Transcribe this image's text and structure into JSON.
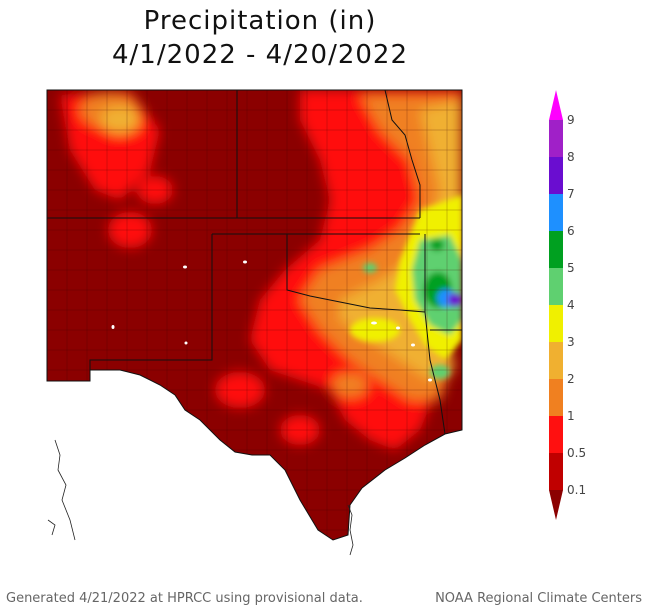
{
  "title": {
    "line1": "Precipitation (in)",
    "line2": "4/1/2022 - 4/20/2022"
  },
  "legend": {
    "ticks": [
      "9",
      "8",
      "7",
      "6",
      "5",
      "4",
      "3",
      "2",
      "1",
      "0.5",
      "0.1"
    ],
    "colors": [
      "#ff00ff",
      "#a020c8",
      "#6a0dd0",
      "#1e90ff",
      "#00a020",
      "#5fd070",
      "#f0f000",
      "#f0b030",
      "#f08020",
      "#ff1010",
      "#c00000",
      "#8b0000"
    ]
  },
  "footer": {
    "left": "Generated 4/21/2022 at HPRCC using provisional data.",
    "right": "NOAA Regional Climate Centers"
  }
}
